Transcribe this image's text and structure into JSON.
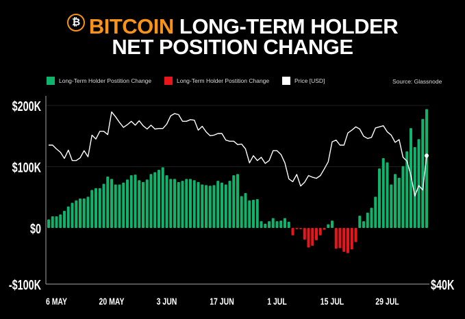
{
  "title": {
    "coin": "BITCOIN",
    "line1_rest": "LONG-TERM HOLDER",
    "line2": "NET POSITION CHANGE",
    "icon": "bitcoin-logo-icon",
    "logo_glyph": "₿"
  },
  "legend": [
    {
      "label": "Long-Term Holder Postition Change",
      "color": "#10b36c"
    },
    {
      "label": "Long-Term Holder Postition Change",
      "color": "#e8161b"
    },
    {
      "label": "Price [USD]",
      "color": "#ffffff"
    }
  ],
  "source": "Source: Glassnode",
  "colors": {
    "accent": "#f7931a",
    "positive": "#10b36c",
    "negative": "#e8161b",
    "price": "#ffffff",
    "background": "#000000"
  },
  "chart_data": {
    "type": "bar",
    "grid": "horizontal",
    "legend_placement": "top",
    "ylim": [
      -100000,
      200000
    ],
    "y_ticks": [
      {
        "value": 200000,
        "label": "$200K"
      },
      {
        "value": 100000,
        "label": "$100K"
      },
      {
        "value": 0,
        "label": "$0"
      },
      {
        "value": -100000,
        "label": "-$100K"
      }
    ],
    "y2lim": [
      40000,
      74000
    ],
    "y2_ticks": [
      {
        "value": 40000,
        "label": "$40K"
      }
    ],
    "x_ticks": [
      {
        "date": "6 May",
        "label": "6 MAY"
      },
      {
        "date": "20 May",
        "label": "20 MAY"
      },
      {
        "date": "3 Jun",
        "label": "3 JUN"
      },
      {
        "date": "17 Jun",
        "label": "17 JUN"
      },
      {
        "date": "1 Jul",
        "label": "1 JUL"
      },
      {
        "date": "15 Jul",
        "label": "15 JUL"
      },
      {
        "date": "29 Jul",
        "label": "29 JUL"
      }
    ],
    "x": [
      "4 May",
      "5 May",
      "6 May",
      "7 May",
      "8 May",
      "9 May",
      "10 May",
      "11 May",
      "12 May",
      "13 May",
      "14 May",
      "15 May",
      "16 May",
      "17 May",
      "18 May",
      "19 May",
      "20 May",
      "21 May",
      "22 May",
      "23 May",
      "24 May",
      "25 May",
      "26 May",
      "27 May",
      "28 May",
      "29 May",
      "30 May",
      "31 May",
      "1 Jun",
      "2 Jun",
      "3 Jun",
      "4 Jun",
      "5 Jun",
      "6 Jun",
      "7 Jun",
      "8 Jun",
      "9 Jun",
      "10 Jun",
      "11 Jun",
      "12 Jun",
      "13 Jun",
      "14 Jun",
      "15 Jun",
      "16 Jun",
      "17 Jun",
      "18 Jun",
      "19 Jun",
      "20 Jun",
      "21 Jun",
      "22 Jun",
      "23 Jun",
      "24 Jun",
      "25 Jun",
      "26 Jun",
      "27 Jun",
      "28 Jun",
      "29 Jun",
      "30 Jun",
      "1 Jul",
      "2 Jul",
      "3 Jul",
      "4 Jul",
      "5 Jul",
      "6 Jul",
      "7 Jul",
      "8 Jul",
      "9 Jul",
      "10 Jul",
      "11 Jul",
      "12 Jul",
      "13 Jul",
      "14 Jul",
      "15 Jul",
      "16 Jul",
      "17 Jul",
      "18 Jul",
      "19 Jul",
      "20 Jul",
      "21 Jul",
      "22 Jul",
      "23 Jul",
      "24 Jul",
      "25 Jul",
      "26 Jul",
      "27 Jul",
      "28 Jul",
      "29 Jul",
      "30 Jul",
      "31 Jul",
      "1 Aug",
      "2 Aug",
      "3 Aug",
      "4 Aug",
      "5 Aug",
      "6 Aug",
      "7 Aug",
      "8 Aug"
    ],
    "series": [
      {
        "name": "Long-Term Holder Postition Change",
        "kind": "bar",
        "axis": "left",
        "values": [
          14000,
          19000,
          19000,
          22000,
          28000,
          35000,
          41000,
          45000,
          48000,
          48000,
          51000,
          62000,
          65000,
          65000,
          72000,
          84000,
          80000,
          71000,
          71000,
          74000,
          79000,
          86000,
          87000,
          78000,
          75000,
          79000,
          88000,
          91000,
          95000,
          99000,
          86000,
          80000,
          80000,
          75000,
          77000,
          80000,
          80000,
          78000,
          75000,
          71000,
          70000,
          69000,
          70000,
          77000,
          74000,
          71000,
          77000,
          86000,
          88000,
          52000,
          57000,
          45000,
          46000,
          47000,
          11000,
          7000,
          11000,
          16000,
          11000,
          12000,
          16000,
          10000,
          -12000,
          -2000,
          -2000,
          -19000,
          -32000,
          -29000,
          -20000,
          -12000,
          -3000,
          6000,
          12000,
          -34000,
          -33000,
          -39000,
          -41000,
          -35000,
          -23000,
          20000,
          11000,
          25000,
          33000,
          51000,
          97000,
          114000,
          107000,
          71000,
          88000,
          82000,
          101000,
          125000,
          163000,
          132000,
          145000,
          178000,
          194000
        ]
      },
      {
        "name": "Price [USD]",
        "kind": "line",
        "axis": "right",
        "values": [
          65100,
          65100,
          64400,
          63800,
          62700,
          64200,
          62300,
          62300,
          62800,
          64100,
          63000,
          66900,
          66200,
          67600,
          67600,
          67000,
          71100,
          70200,
          69200,
          68300,
          68800,
          69400,
          68700,
          69500,
          68600,
          68000,
          68700,
          68000,
          68100,
          68100,
          68900,
          70400,
          70800,
          70600,
          69400,
          69400,
          69700,
          69600,
          67800,
          68500,
          67500,
          66800,
          66900,
          67200,
          67200,
          66000,
          65800,
          65800,
          65200,
          65300,
          64400,
          61900,
          63200,
          62300,
          62900,
          61800,
          62300,
          64100,
          64100,
          63400,
          61900,
          59000,
          58500,
          59800,
          57700,
          58400,
          59600,
          59300,
          59100,
          59600,
          60800,
          62100,
          65700,
          66000,
          65100,
          65100,
          67300,
          67800,
          68400,
          68000,
          66700,
          66300,
          66500,
          68200,
          68400,
          68600,
          67500,
          66900,
          65600,
          66100,
          62900,
          62200,
          59600,
          55900,
          57800,
          57000,
          63200
        ]
      }
    ]
  }
}
